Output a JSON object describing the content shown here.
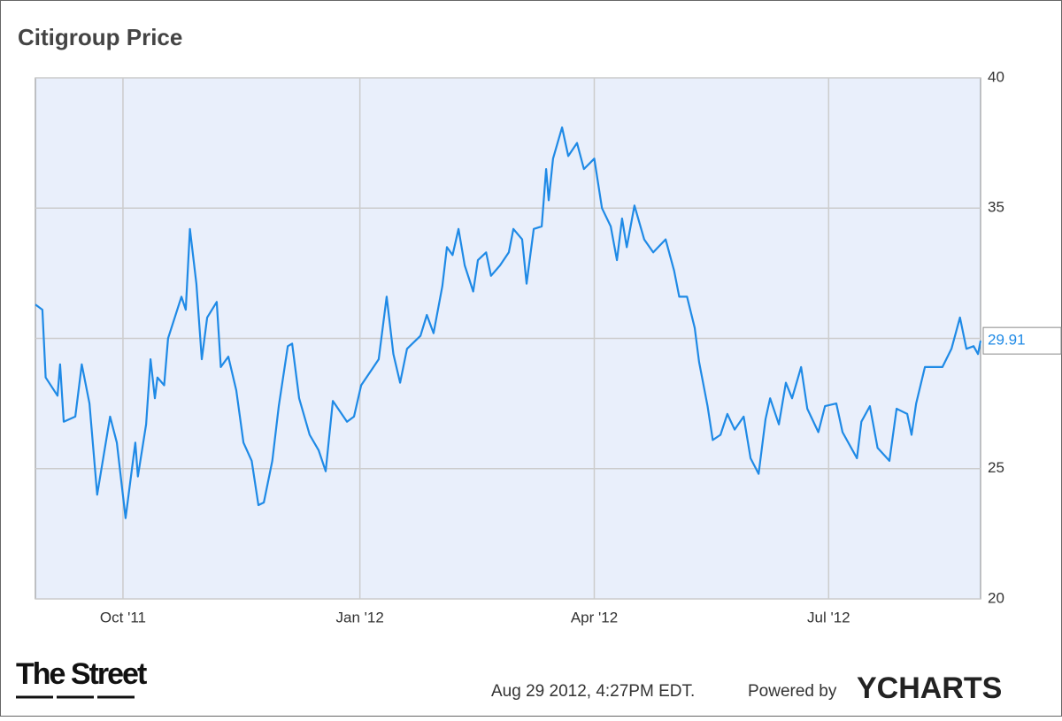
{
  "chart_data": {
    "type": "line",
    "title": "Citigroup Price",
    "x": [
      0,
      2.7,
      4,
      8.6,
      9.6,
      11,
      15.5,
      18,
      21,
      24,
      29,
      31.6,
      35,
      38.8,
      39.8,
      43,
      44.7,
      46.4,
      47.4,
      50,
      51.5,
      56.7,
      58.4,
      60,
      62.5,
      64.6,
      66.7,
      70.4,
      72,
      74.9,
      78,
      80.8,
      84,
      86.6,
      88.7,
      92,
      94.5,
      98,
      99.7,
      102.4,
      106.5,
      110,
      112.7,
      115.5,
      121,
      123.7,
      126.5,
      130.6,
      133.3,
      136.4,
      139,
      141.6,
      144.3,
      149.5,
      152,
      154.6,
      158,
      159.8,
      162,
      164.3,
      166.7,
      170,
      171.8,
      175,
      176.9,
      180.4,
      183.8,
      185.6,
      189,
      190.7,
      193.5,
      196.6,
      198.3,
      199.3,
      201,
      204.5,
      206.9,
      210.3,
      213,
      217,
      220,
      223.4,
      225.8,
      227.8,
      229.6,
      232.6,
      236.4,
      239.9,
      244.7,
      248,
      250,
      253,
      256,
      257.7,
      261,
      263,
      266,
      268.7,
      271.5,
      275,
      277.7,
      280.8,
      283.5,
      285.3,
      288.7,
      291.4,
      293.8,
      297.3,
      299.7,
      304,
      306.6,
      311,
      313.4,
      319,
      320.7,
      324,
      327,
      331.6,
      334.4,
      338.5,
      340.2,
      342,
      345.4,
      352.2,
      355.7,
      359,
      361.5,
      364.3,
      366,
      367
    ],
    "values": [
      31.3,
      31.1,
      28.5,
      27.8,
      29.0,
      26.8,
      27.0,
      29.0,
      27.5,
      24.0,
      27.0,
      26.0,
      23.1,
      26.0,
      24.7,
      26.7,
      29.2,
      27.7,
      28.5,
      28.2,
      30.0,
      31.6,
      31.1,
      34.2,
      32.1,
      29.2,
      30.8,
      31.4,
      28.9,
      29.3,
      28.0,
      26.0,
      25.3,
      23.6,
      23.7,
      25.3,
      27.4,
      29.7,
      29.8,
      27.7,
      26.3,
      25.7,
      24.9,
      27.6,
      26.8,
      27.0,
      28.2,
      28.8,
      29.2,
      31.6,
      29.4,
      28.3,
      29.6,
      30.1,
      30.9,
      30.2,
      32.0,
      33.5,
      33.2,
      34.2,
      32.8,
      31.8,
      33.0,
      33.3,
      32.4,
      32.8,
      33.3,
      34.2,
      33.8,
      32.1,
      34.2,
      34.3,
      36.5,
      35.3,
      36.9,
      38.1,
      37.0,
      37.5,
      36.5,
      36.9,
      35.0,
      34.3,
      33.0,
      34.6,
      33.5,
      35.1,
      33.8,
      33.3,
      33.8,
      32.6,
      31.6,
      31.6,
      30.4,
      29.1,
      27.4,
      26.1,
      26.3,
      27.1,
      26.5,
      27.0,
      25.4,
      24.8,
      26.9,
      27.7,
      26.7,
      28.3,
      27.7,
      28.9,
      27.3,
      26.4,
      27.4,
      27.5,
      26.4,
      25.4,
      26.8,
      27.4,
      25.8,
      25.3,
      27.3,
      27.1,
      26.3,
      27.5,
      28.9,
      28.9,
      29.6,
      30.8,
      29.6,
      29.7,
      29.4,
      29.91
    ],
    "color": "#1f8ae6",
    "xlim": [
      0,
      367
    ],
    "xticks": [
      {
        "value": 34,
        "label": "Oct '11"
      },
      {
        "value": 126,
        "label": "Jan '12"
      },
      {
        "value": 217,
        "label": "Apr '12"
      },
      {
        "value": 308,
        "label": "Jul '12"
      }
    ],
    "ylim": [
      20,
      40
    ],
    "yticks": [
      20,
      25,
      30,
      35,
      40
    ],
    "grid": true,
    "last_label": "29.91",
    "logo": "The Street",
    "timestamp": "Aug 29 2012, 4:27PM EDT.",
    "powered_by": "Powered by",
    "brand": "YCHARTS"
  }
}
